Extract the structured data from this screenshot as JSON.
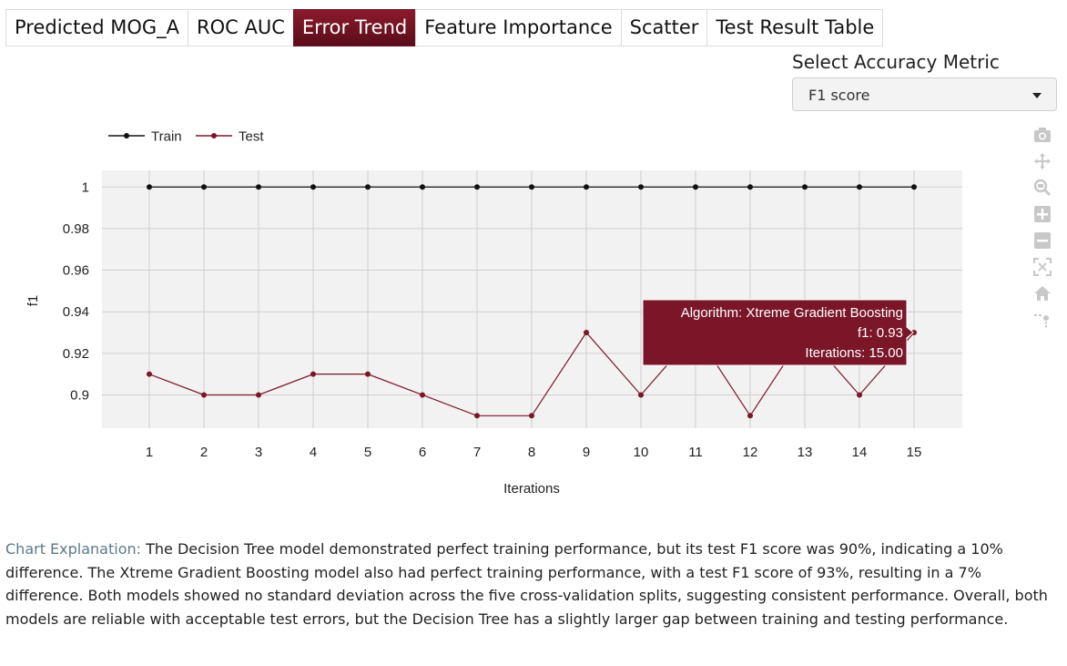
{
  "tabs": [
    {
      "label": "Predicted MOG_A",
      "active": false
    },
    {
      "label": "ROC AUC",
      "active": false
    },
    {
      "label": "Error Trend",
      "active": true
    },
    {
      "label": "Feature Importance",
      "active": false
    },
    {
      "label": "Scatter",
      "active": false
    },
    {
      "label": "Test Result Table",
      "active": false
    }
  ],
  "metric": {
    "label": "Select Accuracy Metric",
    "selected": "F1 score"
  },
  "modebar_icons": [
    "camera-icon",
    "pan-icon",
    "zoom-icon",
    "zoom-in-icon",
    "zoom-out-icon",
    "autoscale-icon",
    "reset-axes-icon",
    "spike-lines-icon"
  ],
  "chart_data": {
    "type": "line",
    "x": [
      1,
      2,
      3,
      4,
      5,
      6,
      7,
      8,
      9,
      10,
      11,
      12,
      13,
      14,
      15
    ],
    "xlabel": "Iterations",
    "ylabel": "f1",
    "ylim": [
      0.884,
      1.008
    ],
    "yticks": [
      0.9,
      0.92,
      0.94,
      0.96,
      0.98,
      1
    ],
    "ytick_labels": [
      "0.9",
      "0.92",
      "0.94",
      "0.96",
      "0.98",
      "1"
    ],
    "grid": true,
    "legend_position": "top-left",
    "series": [
      {
        "name": "Train",
        "color": "#111111",
        "values": [
          1,
          1,
          1,
          1,
          1,
          1,
          1,
          1,
          1,
          1,
          1,
          1,
          1,
          1,
          1
        ]
      },
      {
        "name": "Test",
        "color": "#7a1628",
        "values": [
          0.91,
          0.9,
          0.9,
          0.91,
          0.91,
          0.9,
          0.89,
          0.89,
          0.93,
          0.9,
          0.93,
          0.89,
          0.93,
          0.9,
          0.93
        ]
      }
    ],
    "tooltip": {
      "series": "Test",
      "index": 14,
      "lines": [
        "Algorithm: Xtreme Gradient Boosting",
        "f1: 0.93",
        "Iterations: 15.00"
      ]
    }
  },
  "explanation": {
    "label": "Chart Explanation:",
    "text": " The Decision Tree model demonstrated perfect training performance, but its test F1 score was 90%, indicating a 10% difference. The Xtreme Gradient Boosting model also had perfect training performance, with a test F1 score of 93%, resulting in a 7% difference. Both models showed no standard deviation across the five cross-validation splits, suggesting consistent performance. Overall, both models are reliable with acceptable test errors, but the Decision Tree has a slightly larger gap between training and testing performance."
  },
  "colors": {
    "accent": "#7a1628",
    "train": "#111111",
    "plot_bg": "#f2f2f2"
  }
}
